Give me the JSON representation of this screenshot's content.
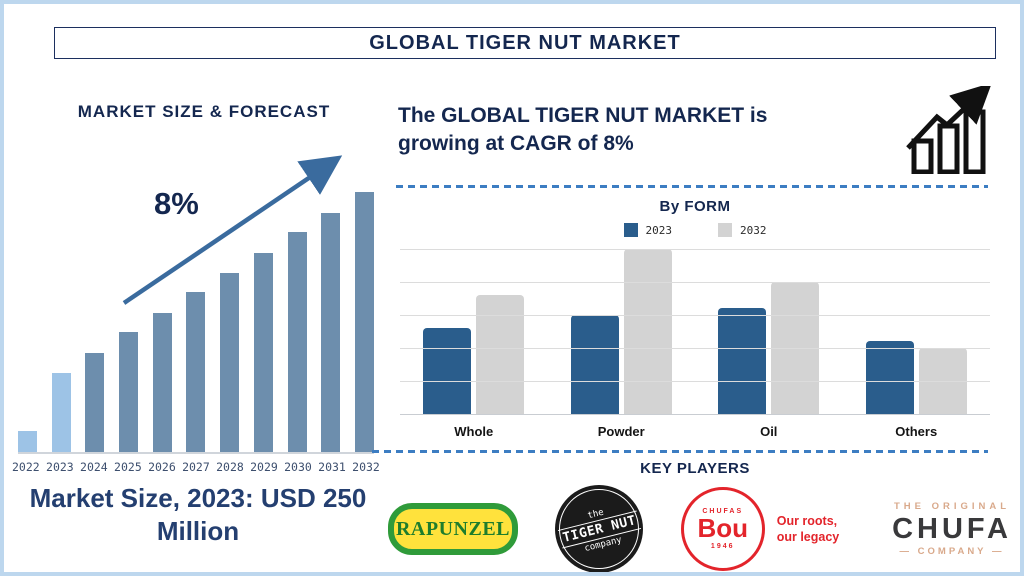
{
  "title": "GLOBAL TIGER NUT MARKET",
  "left_panel": {
    "heading": "MARKET SIZE & FORECAST",
    "growth_label": "8%",
    "caption": "Market Size, 2023: USD 250 Million"
  },
  "right_panel": {
    "growth_text": "The GLOBAL TIGER NUT MARKET is growing at CAGR of 8%",
    "key_players_heading": "KEY PLAYERS"
  },
  "chart_data": [
    {
      "type": "bar",
      "title": "MARKET SIZE & FORECAST",
      "categories": [
        "2022",
        "2023",
        "2024",
        "2025",
        "2026",
        "2027",
        "2028",
        "2029",
        "2030",
        "2031",
        "2032"
      ],
      "values_relative_pct": [
        8,
        30.5,
        38,
        46,
        53.5,
        61.5,
        69,
        76.5,
        84.5,
        92,
        100
      ],
      "known_point": {
        "year": "2023",
        "value": "USD 250 Million"
      },
      "cagr": "8%",
      "highlight_years": [
        "2022",
        "2023"
      ],
      "annotation": "upward trend arrow with 8% label",
      "grid": false,
      "legend_position": "none"
    },
    {
      "type": "bar",
      "title": "By FORM",
      "categories": [
        "Whole",
        "Powder",
        "Oil",
        "Others"
      ],
      "series": [
        {
          "name": "2023",
          "values": [
            52,
            60,
            64,
            44
          ]
        },
        {
          "name": "2032",
          "values": [
            72,
            100,
            80,
            40
          ]
        }
      ],
      "ylim": [
        0,
        100
      ],
      "grid": true,
      "legend_position": "top"
    }
  ],
  "key_players": [
    {
      "name": "Rapunzel",
      "logo_text": "RAPUNZEL"
    },
    {
      "name": "The Tiger Nut Company",
      "logo_text_top": "the",
      "logo_text_main": "TIGER NUT",
      "logo_text_bottom": "company"
    },
    {
      "name": "Chufas Bou",
      "logo_arc_text": "CHUFAS",
      "logo_text_main": "Bou",
      "logo_year": "1946",
      "tagline": "Our roots, our legacy"
    },
    {
      "name": "The Original Chufa Company",
      "logo_text_top": "THE ORIGINAL",
      "logo_text_main": "CHUFA",
      "logo_text_bottom": "— COMPANY —"
    }
  ],
  "colors": {
    "navy": "#14274f",
    "bar_steel_blue": "#6d8ead",
    "bar_light_blue": "#9dc3e6",
    "arrow_blue": "#3a6b9e",
    "bar_2023": "#2a5d8c",
    "bar_2032": "#d3d3d3",
    "dashed_line": "#3c7dc2",
    "page_border": "#bdd7ee",
    "grid": "#dcdcdc"
  }
}
